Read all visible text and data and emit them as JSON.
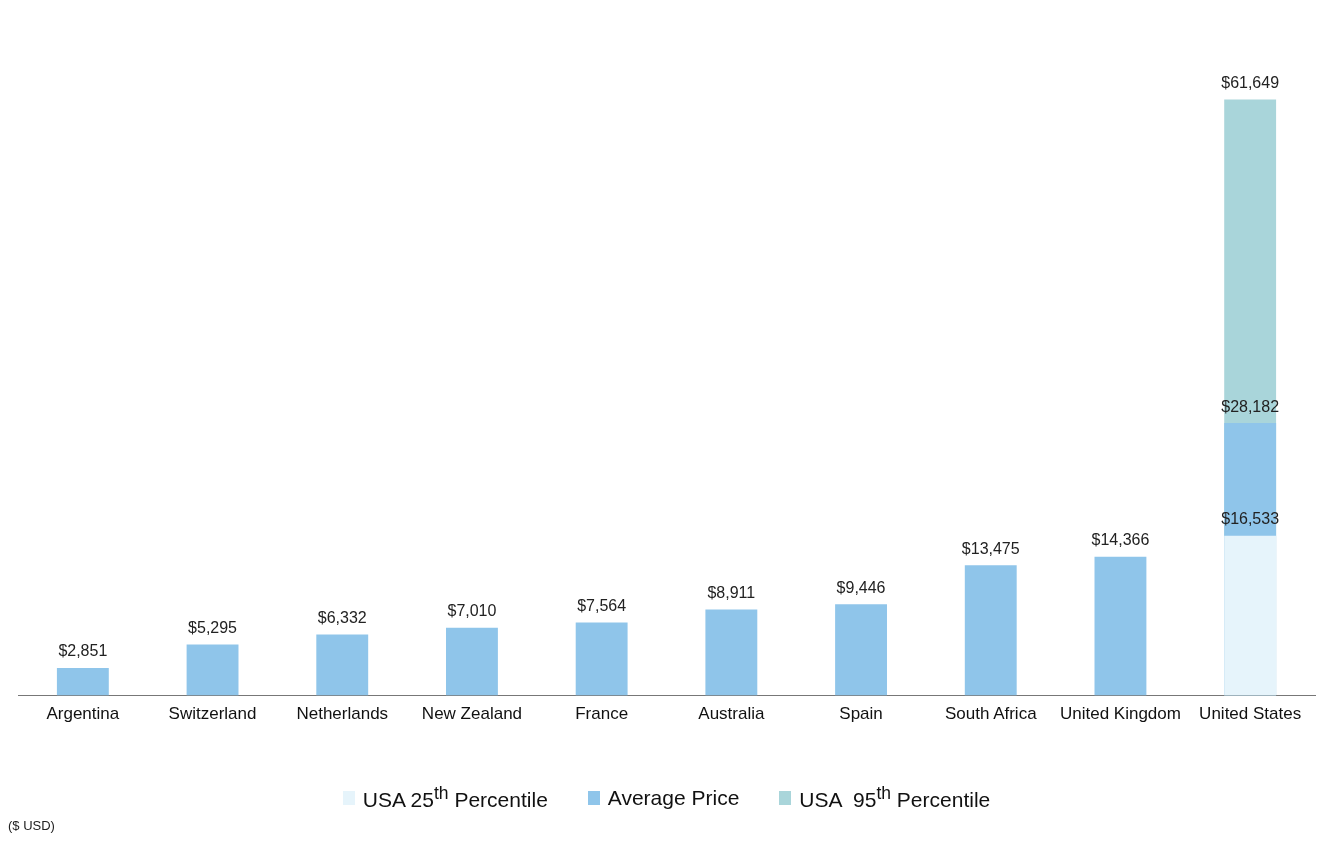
{
  "chart_data": {
    "type": "bar",
    "legend": "bottom",
    "tick_labels": "x",
    "categories": [
      "Argentina",
      "Switzerland",
      "Netherlands",
      "New Zealand",
      "France",
      "Australia",
      "Spain",
      "South Africa",
      "United Kingdom",
      "United States"
    ],
    "series": [
      {
        "name": "USA 25$^{th}$ Percentile",
        "color": "#e6f4fb",
        "values": [
          null,
          null,
          null,
          null,
          null,
          null,
          null,
          null,
          null,
          16533
        ],
        "value_labels": [
          null,
          null,
          null,
          null,
          null,
          null,
          null,
          null,
          null,
          "$16,533"
        ]
      },
      {
        "name": "Average Price",
        "color": "#8fc5ea",
        "values": [
          2851,
          5295,
          6332,
          7010,
          7564,
          8911,
          9446,
          13475,
          14366,
          28182
        ],
        "value_labels": [
          "$2,851",
          "$5,295",
          "$6,332",
          "$7,010",
          "$7,564",
          "$8,911",
          "$9,446",
          "$13,475",
          "$14,366",
          "$28,182"
        ]
      },
      {
        "name": "USA  95$^{th}$ Percentile",
        "color": "#a9d5da",
        "values": [
          null,
          null,
          null,
          null,
          null,
          null,
          null,
          null,
          null,
          61649
        ],
        "value_labels": [
          null,
          null,
          null,
          null,
          null,
          null,
          null,
          null,
          null,
          "$61,649"
        ]
      }
    ],
    "annotations": [
      "($ USD)"
    ]
  }
}
